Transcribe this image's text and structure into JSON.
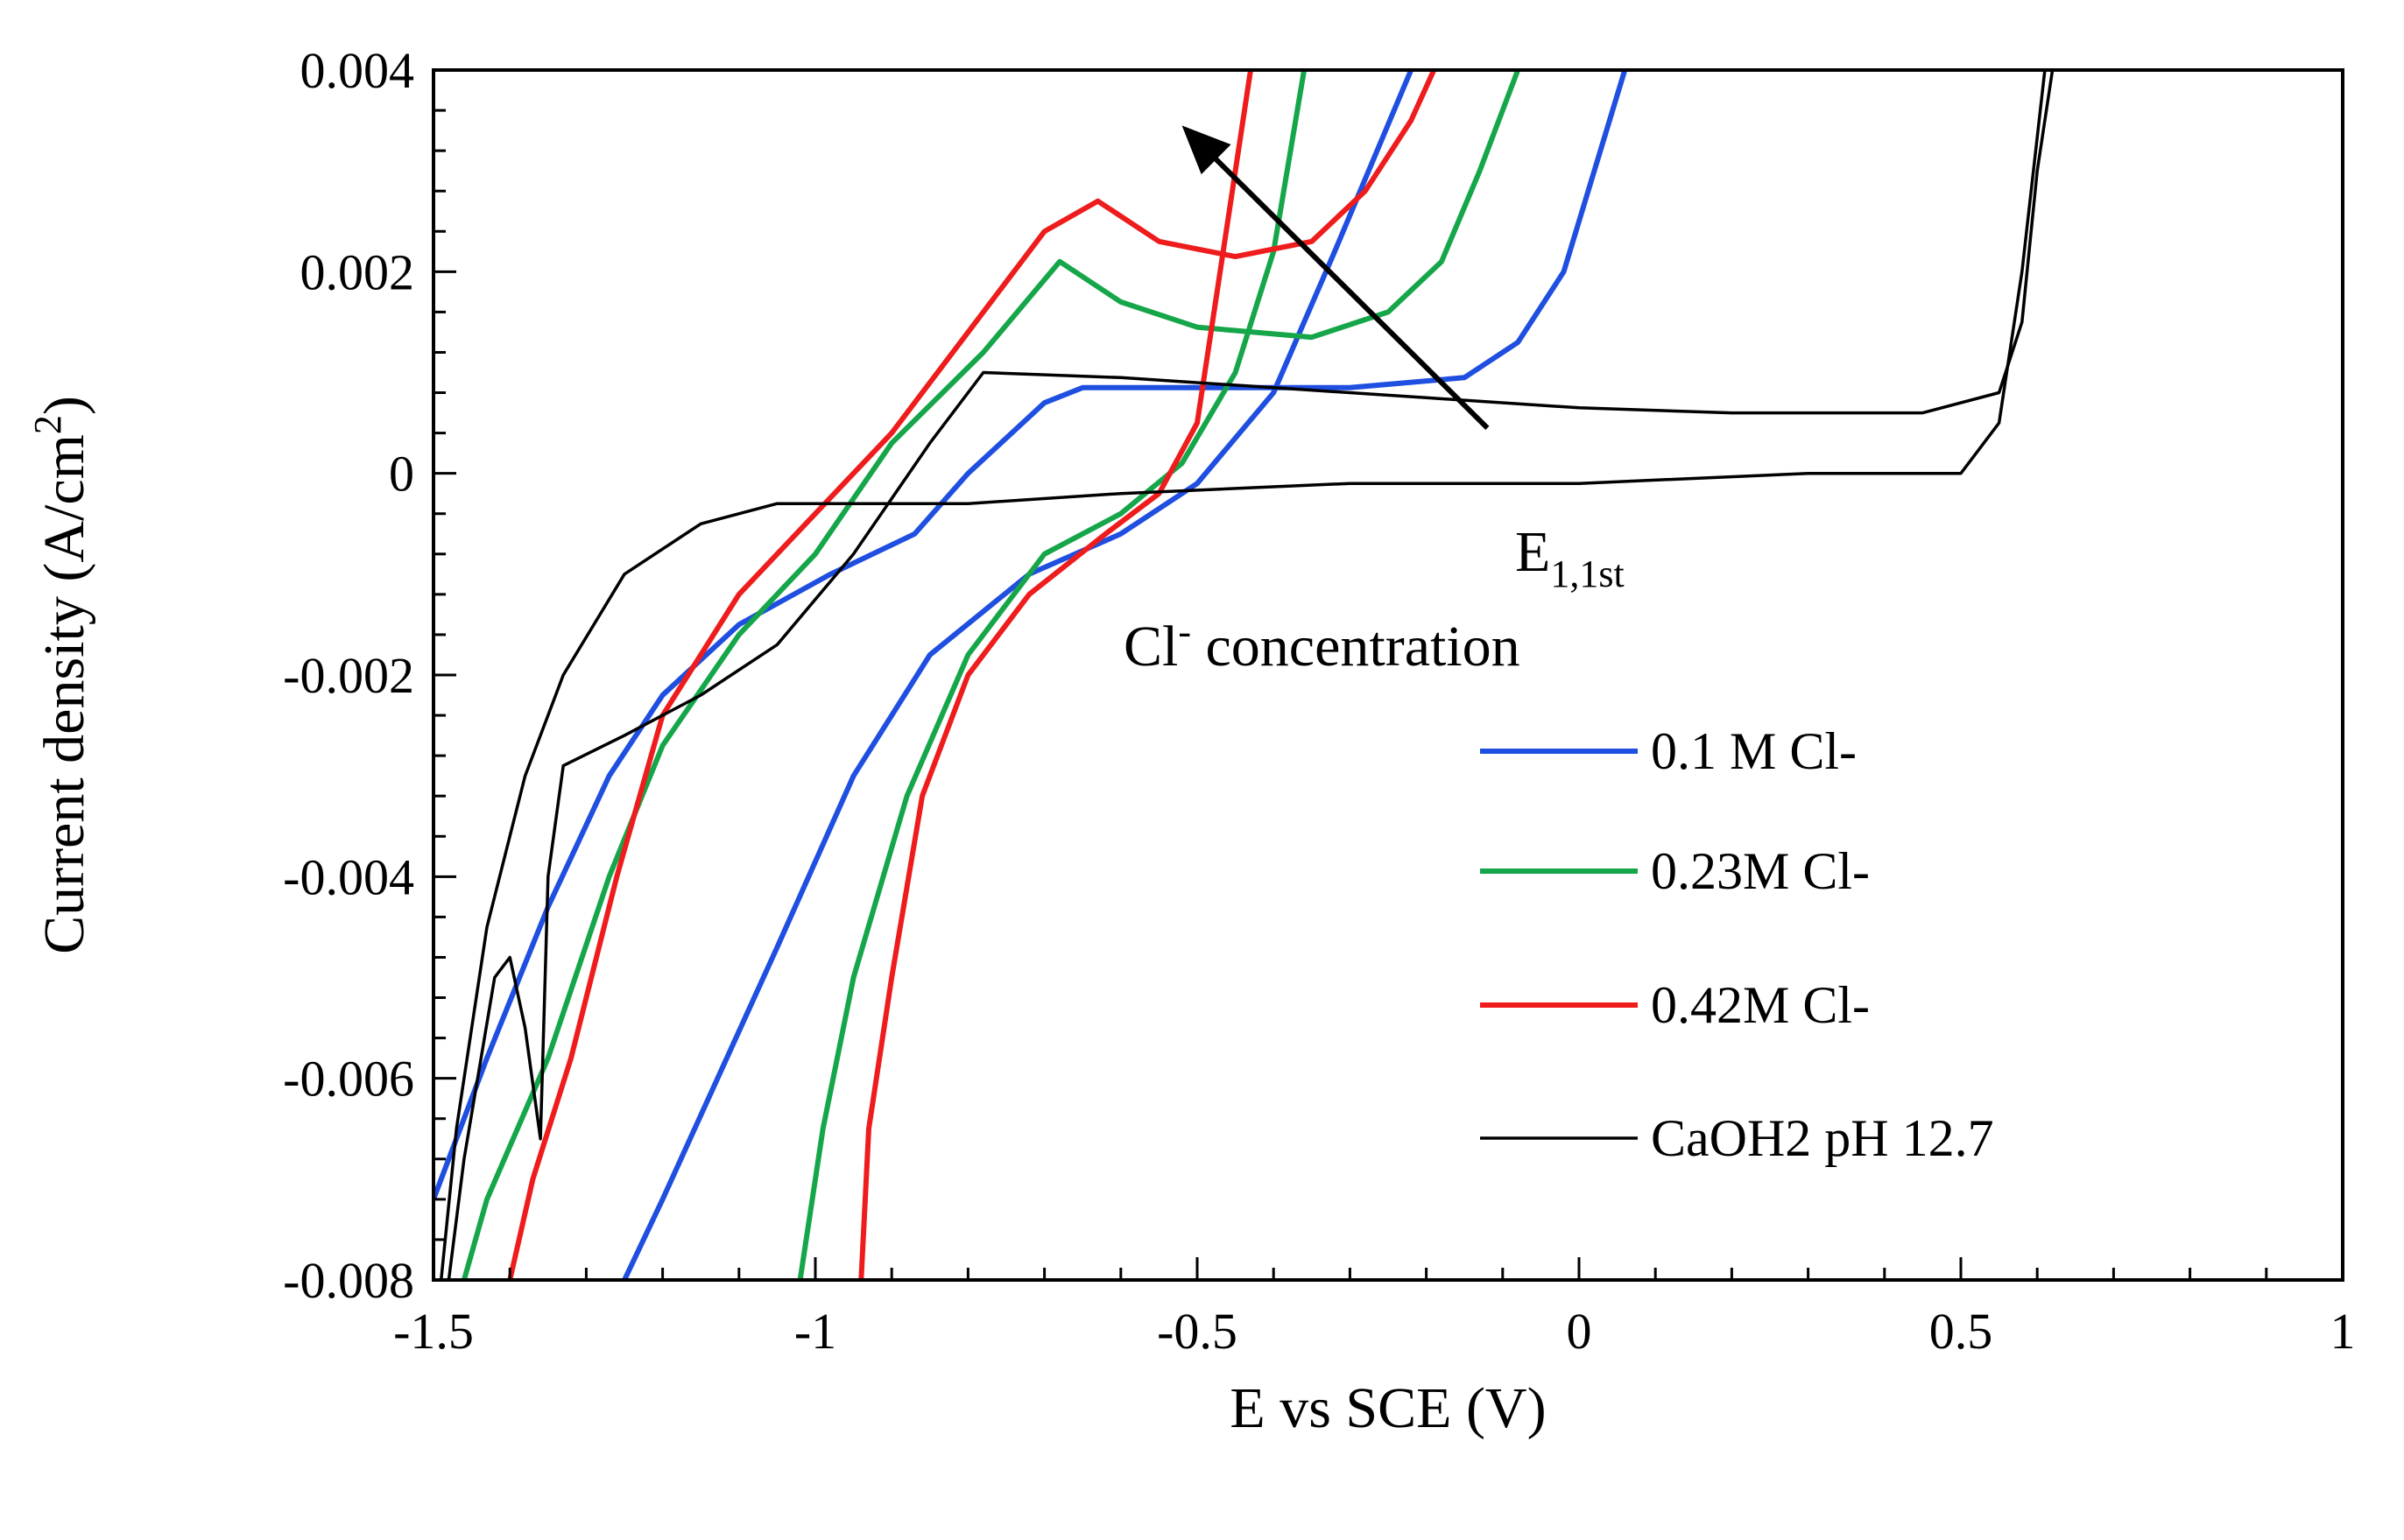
{
  "chart_data": {
    "type": "line",
    "title": "",
    "xlabel": "E vs SCE (V)",
    "ylabel_main": "Current density (A/cm",
    "ylabel_sup": "2",
    "ylabel_close": ")",
    "xlim": [
      -1.5,
      1
    ],
    "ylim": [
      -0.008,
      0.004
    ],
    "xticks": [
      -1.5,
      -1,
      -0.5,
      0,
      0.5,
      1
    ],
    "xtick_labels": [
      "-1.5",
      "-1",
      "-0.5",
      "0",
      "0.5",
      "1"
    ],
    "yticks": [
      0.004,
      0.002,
      0,
      -0.002,
      -0.004,
      -0.006,
      -0.008
    ],
    "ytick_labels": [
      "0.004",
      "0.002",
      "0",
      "-0.002",
      "-0.004",
      "-0.006",
      "-0.008"
    ],
    "grid": false,
    "legend_position": "bottom-right",
    "annotations": {
      "e_main": "E",
      "e_sub": "1,1st",
      "cl_main": "Cl",
      "cl_sup": "-",
      "cl_rest": " concentration",
      "arrow_from": [
        -0.12,
        0.00045
      ],
      "arrow_to": [
        -0.52,
        0.00345
      ]
    },
    "series": [
      {
        "name": "0.1 M Cl-",
        "color": "#1f4fe0",
        "points": [
          [
            -1.5,
            -0.0072
          ],
          [
            -1.43,
            -0.0058
          ],
          [
            -1.35,
            -0.0043
          ],
          [
            -1.27,
            -0.003
          ],
          [
            -1.2,
            -0.0022
          ],
          [
            -1.1,
            -0.0015
          ],
          [
            -0.98,
            -0.001
          ],
          [
            -0.87,
            -0.0006
          ],
          [
            -0.8,
            0.0
          ],
          [
            -0.7,
            0.0007
          ],
          [
            -0.65,
            0.00085
          ],
          [
            -0.5,
            0.00085
          ],
          [
            -0.3,
            0.00085
          ],
          [
            -0.15,
            0.00095
          ],
          [
            -0.08,
            0.0013
          ],
          [
            -0.02,
            0.002
          ],
          [
            0.02,
            0.003
          ],
          [
            0.06,
            0.004
          ]
        ],
        "return_points": [
          [
            -0.22,
            0.004
          ],
          [
            -0.32,
            0.0022
          ],
          [
            -0.4,
            0.0008
          ],
          [
            -0.5,
            -0.0001
          ],
          [
            -0.6,
            -0.0006
          ],
          [
            -0.72,
            -0.001
          ],
          [
            -0.85,
            -0.0018
          ],
          [
            -0.95,
            -0.003
          ],
          [
            -1.05,
            -0.0047
          ],
          [
            -1.14,
            -0.0062
          ],
          [
            -1.2,
            -0.0072
          ],
          [
            -1.25,
            -0.008
          ]
        ]
      },
      {
        "name": "0.23M Cl-",
        "color": "#16a64a",
        "points": [
          [
            -1.46,
            -0.008
          ],
          [
            -1.43,
            -0.0072
          ],
          [
            -1.35,
            -0.0058
          ],
          [
            -1.27,
            -0.004
          ],
          [
            -1.2,
            -0.0027
          ],
          [
            -1.1,
            -0.0016
          ],
          [
            -1.0,
            -0.0008
          ],
          [
            -0.9,
            0.0003
          ],
          [
            -0.78,
            0.0012
          ],
          [
            -0.68,
            0.0021
          ],
          [
            -0.6,
            0.0017
          ],
          [
            -0.5,
            0.00145
          ],
          [
            -0.35,
            0.00135
          ],
          [
            -0.25,
            0.0016
          ],
          [
            -0.18,
            0.0021
          ],
          [
            -0.13,
            0.003
          ],
          [
            -0.08,
            0.004
          ]
        ],
        "return_points": [
          [
            -0.36,
            0.004
          ],
          [
            -0.4,
            0.0022
          ],
          [
            -0.45,
            0.001
          ],
          [
            -0.52,
            0.0001
          ],
          [
            -0.6,
            -0.0004
          ],
          [
            -0.7,
            -0.0008
          ],
          [
            -0.8,
            -0.0018
          ],
          [
            -0.88,
            -0.0032
          ],
          [
            -0.95,
            -0.005
          ],
          [
            -0.99,
            -0.0065
          ],
          [
            -1.02,
            -0.008
          ]
        ]
      },
      {
        "name": "0.42M Cl-",
        "color": "#ee1c1c",
        "points": [
          [
            -1.4,
            -0.008
          ],
          [
            -1.37,
            -0.007
          ],
          [
            -1.32,
            -0.0058
          ],
          [
            -1.26,
            -0.004
          ],
          [
            -1.2,
            -0.0024
          ],
          [
            -1.1,
            -0.0012
          ],
          [
            -1.0,
            -0.0004
          ],
          [
            -0.9,
            0.0004
          ],
          [
            -0.8,
            0.0014
          ],
          [
            -0.7,
            0.0024
          ],
          [
            -0.63,
            0.0027
          ],
          [
            -0.55,
            0.0023
          ],
          [
            -0.45,
            0.00215
          ],
          [
            -0.35,
            0.0023
          ],
          [
            -0.28,
            0.0028
          ],
          [
            -0.22,
            0.0035
          ],
          [
            -0.19,
            0.004
          ]
        ],
        "return_points": [
          [
            -0.43,
            0.004
          ],
          [
            -0.47,
            0.002
          ],
          [
            -0.5,
            0.0005
          ],
          [
            -0.55,
            -0.0002
          ],
          [
            -0.62,
            -0.0006
          ],
          [
            -0.72,
            -0.0012
          ],
          [
            -0.8,
            -0.002
          ],
          [
            -0.86,
            -0.0032
          ],
          [
            -0.9,
            -0.005
          ],
          [
            -0.93,
            -0.0065
          ],
          [
            -0.94,
            -0.008
          ]
        ]
      },
      {
        "name": "CaOH2 pH 12.7",
        "color": "#000000",
        "points": [
          [
            -1.48,
            -0.008
          ],
          [
            -1.46,
            -0.0068
          ],
          [
            -1.42,
            -0.005
          ],
          [
            -1.4,
            -0.0048
          ],
          [
            -1.38,
            -0.0055
          ],
          [
            -1.36,
            -0.0066
          ],
          [
            -1.35,
            -0.004
          ],
          [
            -1.33,
            -0.0029
          ],
          [
            -1.25,
            -0.0026
          ],
          [
            -1.15,
            -0.0022
          ],
          [
            -1.05,
            -0.0017
          ],
          [
            -0.95,
            -0.0008
          ],
          [
            -0.85,
            0.0003
          ],
          [
            -0.78,
            0.001
          ],
          [
            -0.6,
            0.00095
          ],
          [
            -0.4,
            0.00085
          ],
          [
            -0.2,
            0.00075
          ],
          [
            0.0,
            0.00065
          ],
          [
            0.2,
            0.0006
          ],
          [
            0.45,
            0.0006
          ],
          [
            0.55,
            0.0008
          ],
          [
            0.58,
            0.0015
          ],
          [
            0.6,
            0.003
          ],
          [
            0.62,
            0.004
          ]
        ],
        "return_points": [
          [
            0.61,
            0.004
          ],
          [
            0.58,
            0.002
          ],
          [
            0.55,
            0.0005
          ],
          [
            0.5,
            0.0
          ],
          [
            0.3,
            0.0
          ],
          [
            0.0,
            -0.0001
          ],
          [
            -0.3,
            -0.0001
          ],
          [
            -0.6,
            -0.0002
          ],
          [
            -0.8,
            -0.0003
          ],
          [
            -0.95,
            -0.0003
          ],
          [
            -1.05,
            -0.0003
          ],
          [
            -1.15,
            -0.0005
          ],
          [
            -1.25,
            -0.001
          ],
          [
            -1.33,
            -0.002
          ],
          [
            -1.38,
            -0.003
          ],
          [
            -1.43,
            -0.0045
          ],
          [
            -1.47,
            -0.0065
          ],
          [
            -1.49,
            -0.008
          ]
        ]
      }
    ]
  }
}
